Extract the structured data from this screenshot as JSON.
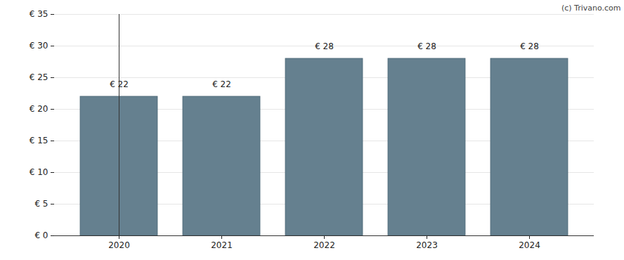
{
  "chart_data": {
    "type": "bar",
    "categories": [
      "2020",
      "2021",
      "2022",
      "2023",
      "2024"
    ],
    "values": [
      22,
      22,
      28,
      28,
      28
    ],
    "value_labels": [
      "€ 22",
      "€ 22",
      "€ 28",
      "€ 28",
      "€ 28"
    ],
    "data_labels": true,
    "color": "#65808f",
    "ylim": [
      0,
      35
    ],
    "yticks": [
      {
        "value": 0,
        "label": "€ 0"
      },
      {
        "value": 5,
        "label": "€ 5"
      },
      {
        "value": 10,
        "label": "€ 10"
      },
      {
        "value": 15,
        "label": "€ 15"
      },
      {
        "value": 20,
        "label": "€ 20"
      },
      {
        "value": 25,
        "label": "€ 25"
      },
      {
        "value": 30,
        "label": "€ 30"
      },
      {
        "value": 35,
        "label": "€ 35"
      }
    ],
    "grid": true,
    "annotations": [
      "(c) Trivano.com"
    ]
  }
}
